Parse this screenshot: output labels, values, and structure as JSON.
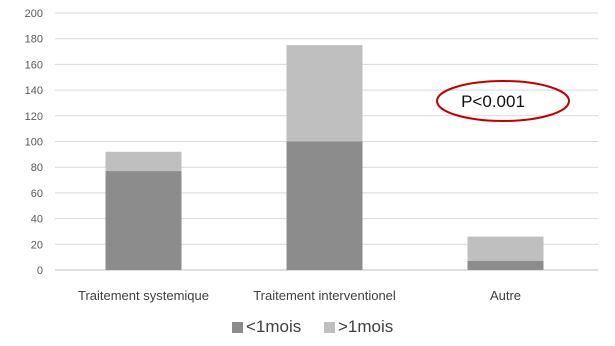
{
  "chart_data": {
    "type": "bar",
    "stacked": true,
    "title": "",
    "xlabel": "",
    "ylabel": "",
    "categories": [
      "Traitement systemique",
      "Traitement interventionel",
      "Autre"
    ],
    "series": [
      {
        "name": "<1mois",
        "values": [
          77,
          100,
          7
        ],
        "color": "#8c8c8c"
      },
      {
        "name": ">1mois",
        "values": [
          15,
          75,
          19
        ],
        "color": "#bfbfbf"
      }
    ],
    "ylim": [
      0,
      200
    ],
    "yticks": [
      0,
      20,
      40,
      60,
      80,
      100,
      120,
      140,
      160,
      180,
      200
    ],
    "grid": true,
    "legend_position": "bottom",
    "annotation": {
      "text": "P<0.001",
      "shape": "ellipse",
      "color": "#c00000"
    },
    "colors": {
      "grid": "#d9d9d9",
      "axis": "#bfbfbf"
    }
  }
}
